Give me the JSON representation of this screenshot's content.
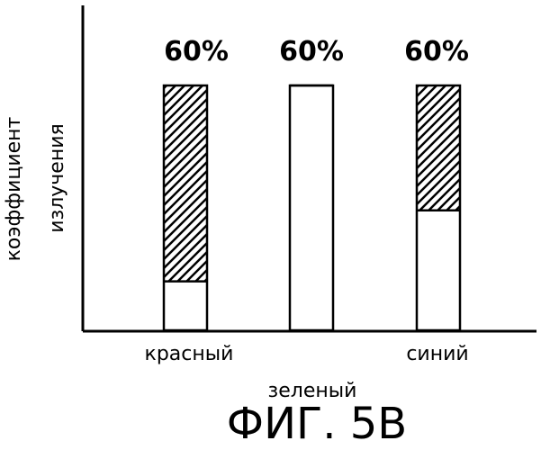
{
  "chart_data": {
    "type": "bar",
    "ylabel_lines": [
      "коэффициент",
      "излучения"
    ],
    "categories": [
      "красный",
      "зеленый",
      "синий"
    ],
    "ylim": [
      0,
      100
    ],
    "series": [
      {
        "values": [
          60,
          60,
          60
        ]
      }
    ],
    "hatched_portion_top": [
      100,
      100,
      100
    ],
    "hatched_portion_bottom": [
      20,
      100,
      49
    ],
    "data_labels": [
      "60%",
      "60%",
      "60%"
    ],
    "bar_fill": "#ffffff",
    "hatch_color": "#000000",
    "grid": false
  },
  "figure_caption": "ФИГ. 5В"
}
